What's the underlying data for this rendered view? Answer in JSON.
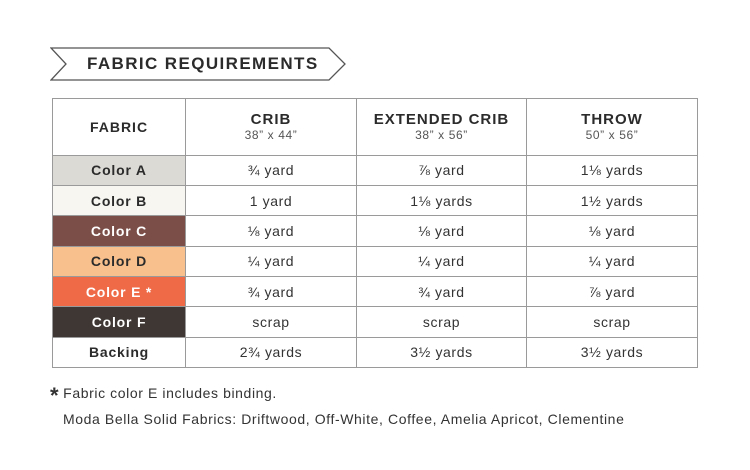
{
  "banner": {
    "title": "FABRIC REQUIREMENTS"
  },
  "table": {
    "fabric_header": "FABRIC",
    "columns": [
      {
        "title": "CRIB",
        "dims": "38” x 44”"
      },
      {
        "title": "EXTENDED CRIB",
        "dims": "38” x 56”"
      },
      {
        "title": "THROW",
        "dims": "50” x 56”"
      }
    ],
    "rows": [
      {
        "label": "Color A",
        "swatch": "#dcdad5",
        "text_color": "#2b2b2b",
        "values": [
          "¾ yard",
          "⅞ yard",
          "1⅛ yards"
        ]
      },
      {
        "label": "Color B",
        "swatch": "#f7f6f1",
        "text_color": "#2b2b2b",
        "values": [
          "1 yard",
          "1⅛ yards",
          "1½ yards"
        ]
      },
      {
        "label": "Color C",
        "swatch": "#7c4e48",
        "text_color": "#ffffff",
        "values": [
          "⅛ yard",
          "⅛ yard",
          "⅛ yard"
        ]
      },
      {
        "label": "Color D",
        "swatch": "#f8c08c",
        "text_color": "#2b2b2b",
        "values": [
          "¼ yard",
          "¼ yard",
          "¼ yard"
        ]
      },
      {
        "label": "Color E *",
        "swatch": "#ef6a46",
        "text_color": "#ffffff",
        "values": [
          "¾ yard",
          "¾ yard",
          "⅞ yard"
        ]
      },
      {
        "label": "Color F",
        "swatch": "#3f3734",
        "text_color": "#ffffff",
        "values": [
          "scrap",
          "scrap",
          "scrap"
        ]
      },
      {
        "label": "Backing",
        "swatch": "#ffffff",
        "text_color": "#2b2b2b",
        "values": [
          "2¾ yards",
          "3½ yards",
          "3½ yards"
        ]
      }
    ]
  },
  "footnote": {
    "star": "*",
    "text": "Fabric color E includes binding."
  },
  "manufacturer": {
    "text": "Moda Bella Solid Fabrics: Driftwood, Off-White, Coffee, Amelia Apricot, Clementine"
  },
  "colors": {
    "border": "#9a9a9a",
    "text": "#2b2b2b"
  }
}
